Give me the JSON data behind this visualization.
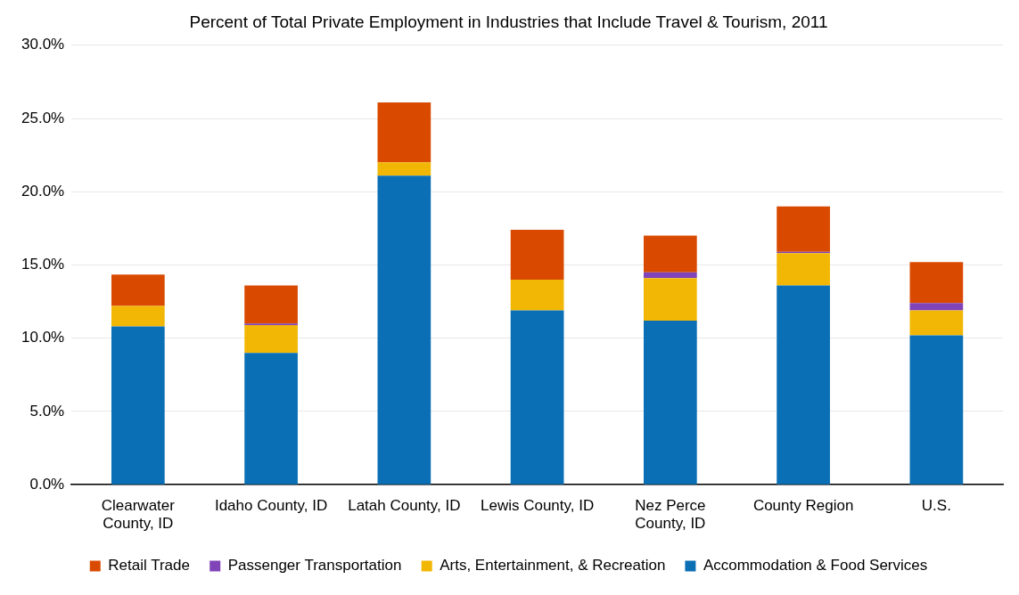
{
  "chart_data": {
    "type": "bar",
    "title": "Percent of Total Private Employment in Industries that Include Travel & Tourism, 2011",
    "categories": [
      "Clearwater County, ID",
      "Idaho County, ID",
      "Latah County, ID",
      "Lewis County, ID",
      "Nez Perce County, ID",
      "County Region",
      "U.S."
    ],
    "stacked": true,
    "series": [
      {
        "name": "Accommodation & Food Services",
        "color": "#0a6fb5",
        "values": [
          10.8,
          9.0,
          21.1,
          11.9,
          11.2,
          13.6,
          10.2
        ]
      },
      {
        "name": "Arts, Entertainment, & Recreation",
        "color": "#f2b705",
        "values": [
          1.4,
          1.9,
          0.9,
          2.1,
          2.9,
          2.2,
          1.7
        ]
      },
      {
        "name": "Passenger Transportation",
        "color": "#8043b8",
        "values": [
          0,
          0.1,
          0,
          0,
          0.4,
          0.1,
          0.5
        ]
      },
      {
        "name": "Retail Trade",
        "color": "#d94a00",
        "values": [
          2.15,
          2.6,
          4.1,
          3.4,
          2.5,
          3.1,
          2.8
        ]
      }
    ],
    "ylim": [
      0,
      30
    ],
    "yticks": [
      {
        "value": 0,
        "label": "0.0%"
      },
      {
        "value": 5,
        "label": "5.0%"
      },
      {
        "value": 10,
        "label": "10.0%"
      },
      {
        "value": 15,
        "label": "15.0%"
      },
      {
        "value": 20,
        "label": "20.0%"
      },
      {
        "value": 25,
        "label": "25.0%"
      },
      {
        "value": 30,
        "label": "30.0%"
      }
    ],
    "grid": "y",
    "legend": "bottom"
  }
}
